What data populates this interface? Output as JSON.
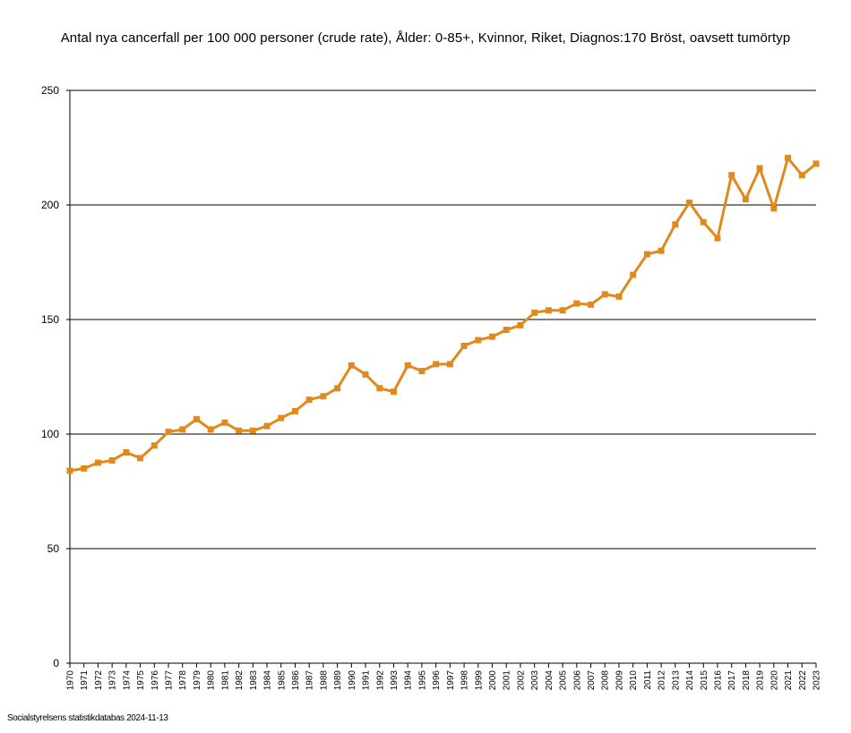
{
  "chart_data": {
    "type": "line",
    "title": "Antal nya cancerfall per 100 000 personer (crude rate), Ålder: 0-85+, Kvinnor, Riket, Diagnos:170 Bröst, oavsett tumörtyp",
    "xlabel": "",
    "ylabel": "",
    "ylim": [
      0,
      250
    ],
    "yticks": [
      "0",
      "50",
      "100",
      "150",
      "200",
      "250"
    ],
    "grid": true,
    "legend": "none",
    "x": [
      "1970",
      "1971",
      "1972",
      "1973",
      "1974",
      "1975",
      "1976",
      "1977",
      "1978",
      "1979",
      "1980",
      "1981",
      "1982",
      "1983",
      "1984",
      "1985",
      "1986",
      "1987",
      "1988",
      "1989",
      "1990",
      "1991",
      "1992",
      "1993",
      "1994",
      "1995",
      "1996",
      "1997",
      "1998",
      "1999",
      "2000",
      "2001",
      "2002",
      "2003",
      "2004",
      "2005",
      "2006",
      "2007",
      "2008",
      "2009",
      "2010",
      "2011",
      "2012",
      "2013",
      "2014",
      "2015",
      "2016",
      "2017",
      "2018",
      "2019",
      "2020",
      "2021",
      "2022",
      "2023"
    ],
    "series": [
      {
        "color": "#e08a1e",
        "values": [
          84,
          85,
          87.5,
          88.5,
          92,
          89.5,
          95,
          101,
          102,
          106.5,
          102,
          105,
          101.5,
          101.5,
          103.5,
          107,
          110,
          115,
          116.5,
          120,
          130,
          126,
          120,
          118.5,
          130,
          127.5,
          130.5,
          130.5,
          138.5,
          141,
          142.5,
          145.5,
          147.5,
          153,
          154,
          154,
          157,
          156.5,
          161,
          160,
          169.5,
          178.5,
          180,
          191.5,
          201,
          192.5,
          185.5,
          213,
          202.5,
          216,
          198.5,
          220.5,
          213,
          218
        ]
      }
    ]
  },
  "footer": "Socialstyrelsens statistikdatabas 2024-11-13"
}
